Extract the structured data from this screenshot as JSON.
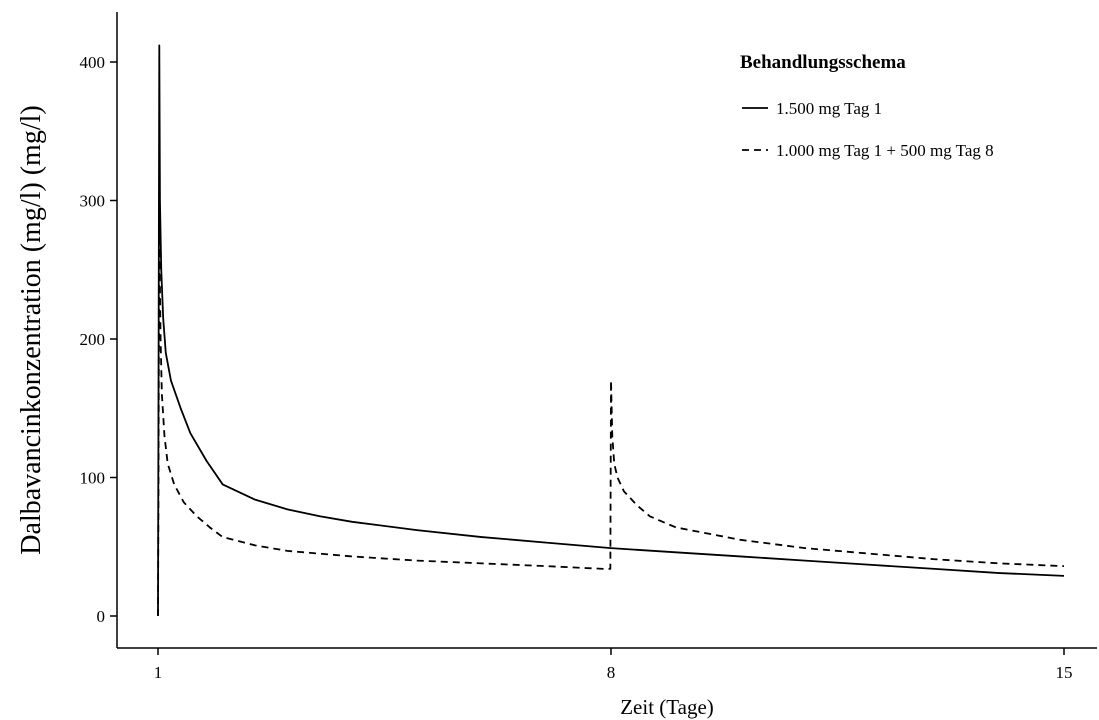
{
  "chart_data": {
    "type": "line",
    "xlabel": "Zeit (Tage)",
    "ylabel": "Dalbavancinkonzentration (mg/l) (mg/l)",
    "xlim": [
      1,
      15
    ],
    "ylim": [
      0,
      400
    ],
    "xticks": [
      1,
      8,
      15
    ],
    "yticks": [
      0,
      100,
      200,
      300,
      400
    ],
    "grid": false,
    "legend": {
      "title": "Behandlungsschema",
      "position": "top-right"
    },
    "series": [
      {
        "name": "1.500 mg Tag 1",
        "style": "solid",
        "x": [
          1.0,
          1.02,
          1.03,
          1.05,
          1.08,
          1.12,
          1.2,
          1.35,
          1.5,
          1.75,
          2.0,
          2.5,
          3,
          3.5,
          4,
          5,
          6,
          7,
          8,
          9,
          10,
          11,
          12,
          13,
          14,
          15
        ],
        "y": [
          0,
          412,
          300,
          250,
          215,
          190,
          170,
          150,
          132,
          112,
          95,
          84,
          77,
          72,
          68,
          62,
          57,
          53,
          49,
          46,
          43,
          40,
          37,
          34,
          31,
          29
        ]
      },
      {
        "name": "1.000 mg Tag 1 + 500 mg Tag 8",
        "style": "dashed",
        "x": [
          1.0,
          1.02,
          1.04,
          1.06,
          1.1,
          1.15,
          1.25,
          1.4,
          1.6,
          1.8,
          2.0,
          2.5,
          3,
          4,
          5,
          6,
          7,
          7.9,
          7.99,
          8.0,
          8.02,
          8.05,
          8.1,
          8.2,
          8.4,
          8.6,
          9,
          10,
          11,
          12,
          13,
          14,
          15
        ],
        "y": [
          0,
          275,
          200,
          160,
          130,
          110,
          95,
          82,
          72,
          64,
          57,
          51,
          47,
          43,
          40,
          38,
          36,
          34,
          34,
          170,
          130,
          110,
          100,
          90,
          80,
          72,
          64,
          55,
          49,
          45,
          41,
          38,
          36
        ]
      }
    ]
  }
}
